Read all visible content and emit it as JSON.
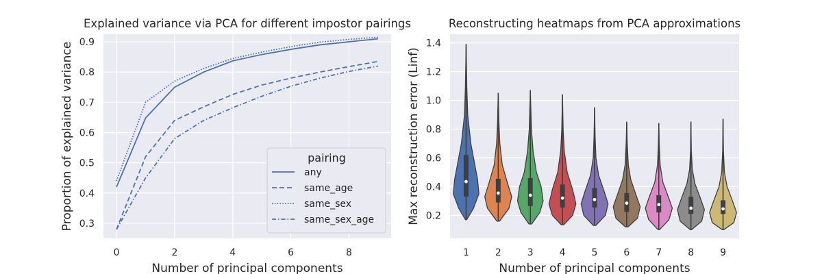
{
  "chart_data": [
    {
      "type": "line",
      "title": "Explained variance via PCA for different impostor pairings",
      "xlabel": "Number of principal components",
      "ylabel": "Proportion of explained variance",
      "x": [
        0,
        1,
        2,
        3,
        4,
        5,
        6,
        7,
        8,
        9
      ],
      "xlim": [
        -0.45,
        9.45
      ],
      "ylim": [
        0.25,
        0.925
      ],
      "xticks": [
        0,
        2,
        4,
        6,
        8
      ],
      "yticks": [
        0.3,
        0.4,
        0.5,
        0.6,
        0.7,
        0.8,
        0.9
      ],
      "grid": true,
      "legend": {
        "title": "pairing",
        "position": "lower-right"
      },
      "series": [
        {
          "name": "any",
          "dash": "solid",
          "values": [
            0.42,
            0.648,
            0.75,
            0.8,
            0.837,
            0.858,
            0.875,
            0.89,
            0.9,
            0.91
          ]
        },
        {
          "name": "same_age",
          "dash": "dashed",
          "values": [
            0.28,
            0.52,
            0.64,
            0.685,
            0.726,
            0.757,
            0.78,
            0.8,
            0.818,
            0.835
          ]
        },
        {
          "name": "same_sex",
          "dash": "dotted",
          "values": [
            0.44,
            0.7,
            0.77,
            0.812,
            0.845,
            0.866,
            0.884,
            0.899,
            0.908,
            0.915
          ]
        },
        {
          "name": "same_sex_age",
          "dash": "dashdot",
          "values": [
            0.28,
            0.45,
            0.58,
            0.64,
            0.682,
            0.72,
            0.753,
            0.78,
            0.802,
            0.82
          ]
        }
      ],
      "color": "#4c72b0"
    },
    {
      "type": "violin",
      "title": "Reconstructing heatmaps from PCA approximations",
      "xlabel": "Number of principal components",
      "ylabel": "Max reconstruction error (Linf)",
      "categories": [
        "1",
        "2",
        "3",
        "4",
        "5",
        "6",
        "7",
        "8",
        "9"
      ],
      "ylim": [
        0.04,
        1.46
      ],
      "yticks": [
        0.2,
        0.4,
        0.6,
        0.8,
        1.0,
        1.2,
        1.4
      ],
      "grid": true,
      "colors": [
        "#4c72b0",
        "#dd8452",
        "#55a868",
        "#c44e52",
        "#8172b3",
        "#937860",
        "#da8bc3",
        "#8c8c8c",
        "#ccb974"
      ],
      "distributions": [
        {
          "min": 0.17,
          "q1": 0.33,
          "median": 0.435,
          "q3": 0.62,
          "max": 1.39,
          "width_profile": [
            [
              0.17,
              0.05
            ],
            [
              0.25,
              0.55
            ],
            [
              0.35,
              0.95
            ],
            [
              0.45,
              0.85
            ],
            [
              0.55,
              0.65
            ],
            [
              0.7,
              0.35
            ],
            [
              0.9,
              0.12
            ],
            [
              1.1,
              0.05
            ],
            [
              1.39,
              0.0
            ]
          ]
        },
        {
          "min": 0.16,
          "q1": 0.29,
          "median": 0.355,
          "q3": 0.455,
          "max": 1.05,
          "width_profile": [
            [
              0.16,
              0.1
            ],
            [
              0.25,
              0.8
            ],
            [
              0.33,
              1.0
            ],
            [
              0.42,
              0.7
            ],
            [
              0.55,
              0.3
            ],
            [
              0.7,
              0.12
            ],
            [
              0.85,
              0.05
            ],
            [
              1.05,
              0.0
            ]
          ]
        },
        {
          "min": 0.14,
          "q1": 0.265,
          "median": 0.34,
          "q3": 0.46,
          "max": 1.07,
          "width_profile": [
            [
              0.14,
              0.1
            ],
            [
              0.22,
              0.7
            ],
            [
              0.3,
              0.95
            ],
            [
              0.4,
              0.8
            ],
            [
              0.5,
              0.45
            ],
            [
              0.65,
              0.2
            ],
            [
              0.8,
              0.08
            ],
            [
              1.07,
              0.0
            ]
          ]
        },
        {
          "min": 0.135,
          "q1": 0.255,
          "median": 0.32,
          "q3": 0.415,
          "max": 1.04,
          "width_profile": [
            [
              0.135,
              0.1
            ],
            [
              0.2,
              0.75
            ],
            [
              0.28,
              1.0
            ],
            [
              0.38,
              0.75
            ],
            [
              0.5,
              0.35
            ],
            [
              0.65,
              0.13
            ],
            [
              0.8,
              0.05
            ],
            [
              1.04,
              0.0
            ]
          ]
        },
        {
          "min": 0.13,
          "q1": 0.255,
          "median": 0.31,
          "q3": 0.39,
          "max": 0.95,
          "width_profile": [
            [
              0.13,
              0.1
            ],
            [
              0.2,
              0.8
            ],
            [
              0.28,
              1.0
            ],
            [
              0.37,
              0.7
            ],
            [
              0.48,
              0.3
            ],
            [
              0.6,
              0.1
            ],
            [
              0.75,
              0.04
            ],
            [
              0.95,
              0.0
            ]
          ]
        },
        {
          "min": 0.12,
          "q1": 0.225,
          "median": 0.285,
          "q3": 0.355,
          "max": 0.85,
          "width_profile": [
            [
              0.12,
              0.1
            ],
            [
              0.18,
              0.8
            ],
            [
              0.26,
              1.0
            ],
            [
              0.34,
              0.7
            ],
            [
              0.45,
              0.3
            ],
            [
              0.55,
              0.12
            ],
            [
              0.7,
              0.04
            ],
            [
              0.85,
              0.0
            ]
          ]
        },
        {
          "min": 0.1,
          "q1": 0.22,
          "median": 0.275,
          "q3": 0.34,
          "max": 0.84,
          "width_profile": [
            [
              0.1,
              0.05
            ],
            [
              0.17,
              0.75
            ],
            [
              0.25,
              1.0
            ],
            [
              0.33,
              0.7
            ],
            [
              0.43,
              0.3
            ],
            [
              0.55,
              0.1
            ],
            [
              0.7,
              0.03
            ],
            [
              0.84,
              0.0
            ]
          ]
        },
        {
          "min": 0.1,
          "q1": 0.21,
          "median": 0.25,
          "q3": 0.33,
          "max": 0.85,
          "width_profile": [
            [
              0.1,
              0.05
            ],
            [
              0.16,
              0.8
            ],
            [
              0.24,
              1.0
            ],
            [
              0.32,
              0.7
            ],
            [
              0.42,
              0.3
            ],
            [
              0.52,
              0.1
            ],
            [
              0.65,
              0.03
            ],
            [
              0.85,
              0.0
            ]
          ]
        },
        {
          "min": 0.1,
          "q1": 0.21,
          "median": 0.245,
          "q3": 0.305,
          "max": 0.87,
          "width_profile": [
            [
              0.1,
              0.05
            ],
            [
              0.15,
              0.8
            ],
            [
              0.22,
              1.0
            ],
            [
              0.3,
              0.7
            ],
            [
              0.4,
              0.3
            ],
            [
              0.5,
              0.1
            ],
            [
              0.65,
              0.03
            ],
            [
              0.87,
              0.0
            ]
          ]
        }
      ]
    }
  ]
}
